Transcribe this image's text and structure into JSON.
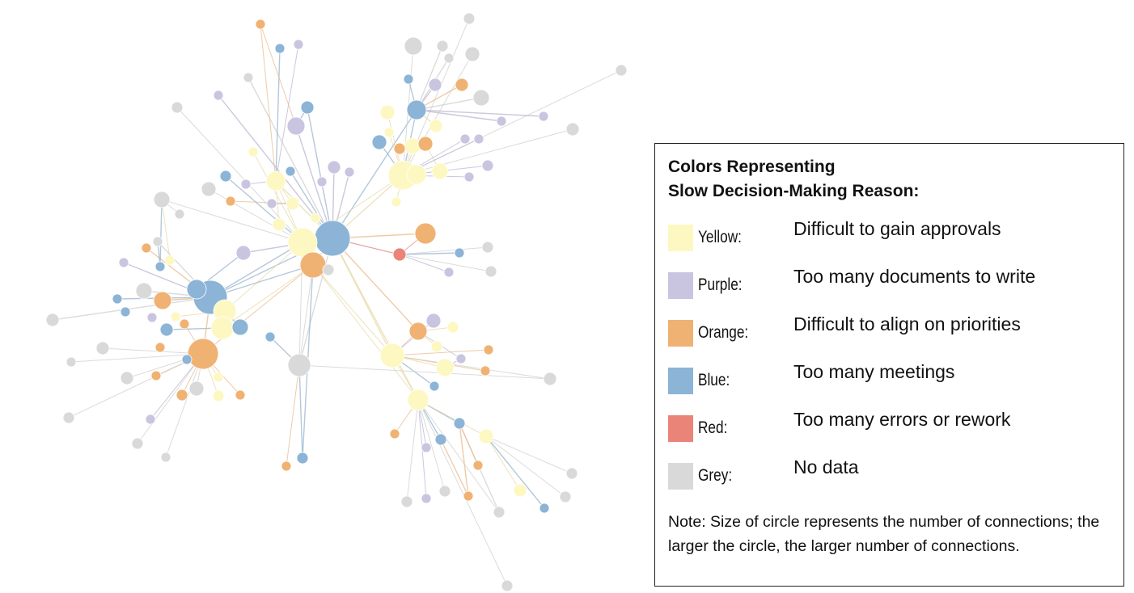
{
  "legend": {
    "title_line1": "Colors Representing",
    "title_line2": "Slow Decision-Making Reason:",
    "items": [
      {
        "name": "Yellow:",
        "reason": "Difficult to gain approvals",
        "color": "#fdf8c2"
      },
      {
        "name": "Purple:",
        "reason": "Too many documents to write",
        "color": "#c9c5e0"
      },
      {
        "name": "Orange:",
        "reason": "Difficult to align on priorities",
        "color": "#f0b273"
      },
      {
        "name": "Blue:",
        "reason": "Too many meetings",
        "color": "#8cb4d6"
      },
      {
        "name": "Red:",
        "reason": "Too many errors or rework",
        "color": "#eb8478"
      },
      {
        "name": "Grey:",
        "reason": "No data",
        "color": "#d9d9d9"
      }
    ],
    "note": "Note: Size of circle represents the number of connections; the larger the circle, the larger number of connections."
  },
  "network": {
    "node_colors": {
      "yellow": "#fdf8c2",
      "purple": "#c9c5e0",
      "orange": "#f0b273",
      "blue": "#8cb4d6",
      "red": "#eb8478",
      "grey": "#d9d9d9"
    }
  }
}
